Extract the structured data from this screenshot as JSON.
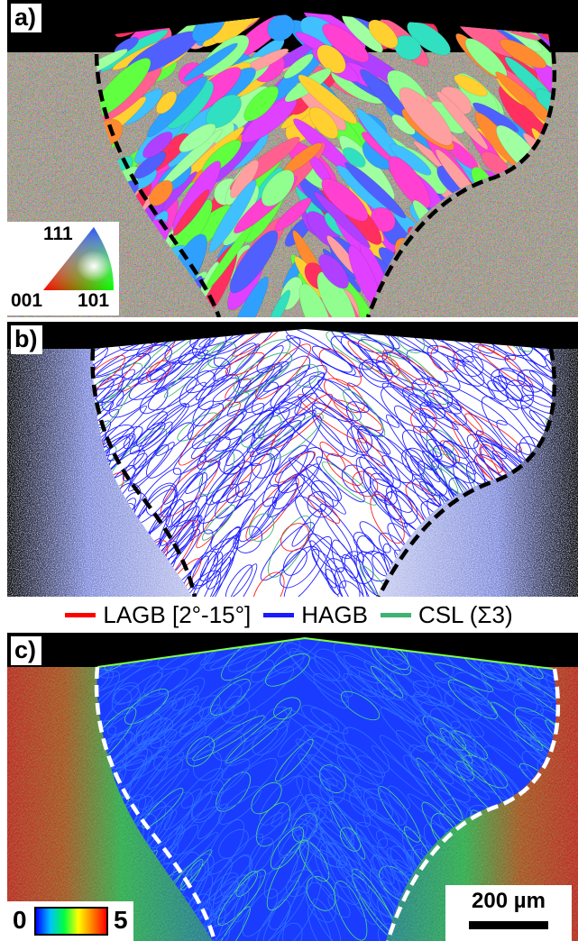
{
  "figure": {
    "panels": [
      {
        "label": "a)",
        "kind": "orientation-map"
      },
      {
        "label": "b)",
        "kind": "grain-boundary-map"
      },
      {
        "label": "c)",
        "kind": "misorientation-map"
      }
    ]
  },
  "ipf_key": {
    "top": "111",
    "left": "001",
    "right": "101"
  },
  "boundary_legend": [
    {
      "label": "LAGB [2°-15°]",
      "color": "#ff0000"
    },
    {
      "label": "HAGB",
      "color": "#1a1aff"
    },
    {
      "label": "CSL (Σ3)",
      "color": "#3cb371"
    }
  ],
  "kam_scale": {
    "min": "0",
    "max": "5"
  },
  "scale_bar": {
    "label": "200 µm"
  },
  "colors": {
    "fusion_line_ab": "#000000",
    "fusion_line_c": "#ffffff",
    "kam_matrix": "#1a3cff"
  }
}
